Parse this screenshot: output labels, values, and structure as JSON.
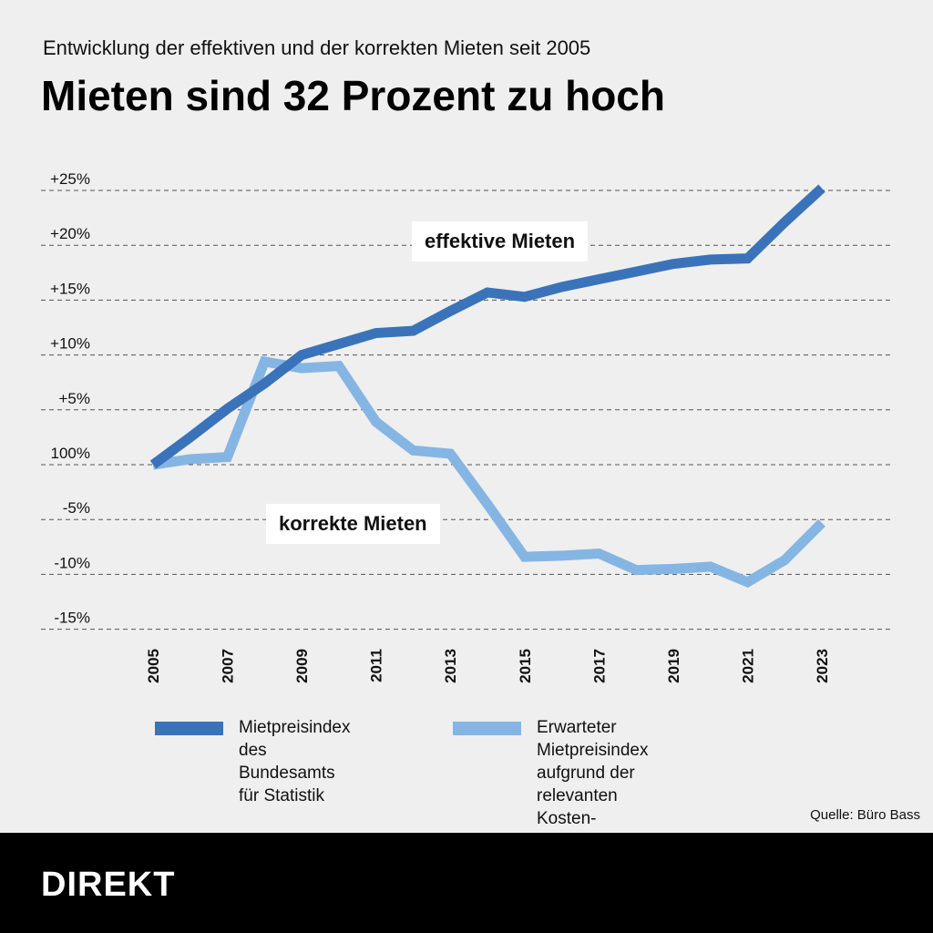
{
  "header": {
    "subtitle": "Entwicklung der effektiven und der korrekten Mieten seit 2005",
    "title": "Mieten sind 32 Prozent zu hoch"
  },
  "chart_data": {
    "type": "line",
    "x": [
      2005,
      2006,
      2007,
      2008,
      2009,
      2010,
      2011,
      2012,
      2013,
      2014,
      2015,
      2016,
      2017,
      2018,
      2019,
      2020,
      2021,
      2022,
      2023
    ],
    "x_tick_labels": [
      "2005",
      "2007",
      "2009",
      "2011",
      "2013",
      "2015",
      "2017",
      "2019",
      "2021",
      "2023"
    ],
    "y_tick_labels": [
      "+25%",
      "+20%",
      "+15%",
      "+10%",
      "+5%",
      "100%",
      "-5%",
      "-10%",
      "-15%"
    ],
    "y_ticks": [
      25,
      20,
      15,
      10,
      5,
      0,
      -5,
      -10,
      -15
    ],
    "ylim": [
      -15,
      25
    ],
    "grid": true,
    "series": [
      {
        "name": "effektive Mieten",
        "color": "#3a73b9",
        "values": [
          0,
          2.5,
          5.1,
          7.4,
          10.0,
          11.0,
          12.0,
          12.2,
          14.0,
          15.7,
          15.3,
          16.2,
          16.9,
          17.6,
          18.3,
          18.7,
          18.8,
          22.1,
          25.2
        ]
      },
      {
        "name": "korrekte Mieten",
        "color": "#85b5e3",
        "values": [
          0,
          0.5,
          0.7,
          9.4,
          8.8,
          9.0,
          3.9,
          1.3,
          1.0,
          -3.6,
          -8.4,
          -8.3,
          -8.1,
          -9.6,
          -9.5,
          -9.3,
          -10.7,
          -8.7,
          -5.3
        ]
      }
    ],
    "legend": [
      {
        "label": "Mietpreisindex\ndes Bundesamts\nfür Statistik",
        "color": "#3a73b9"
      },
      {
        "label": "Erwarteter Mietpreisindex\naufgrund der relevanten Kosten-\nfaktoren gemäss Mietrecht",
        "color": "#85b5e3"
      }
    ]
  },
  "footer": {
    "source": "Quelle: Büro Bass",
    "brand": "DIREKT"
  }
}
